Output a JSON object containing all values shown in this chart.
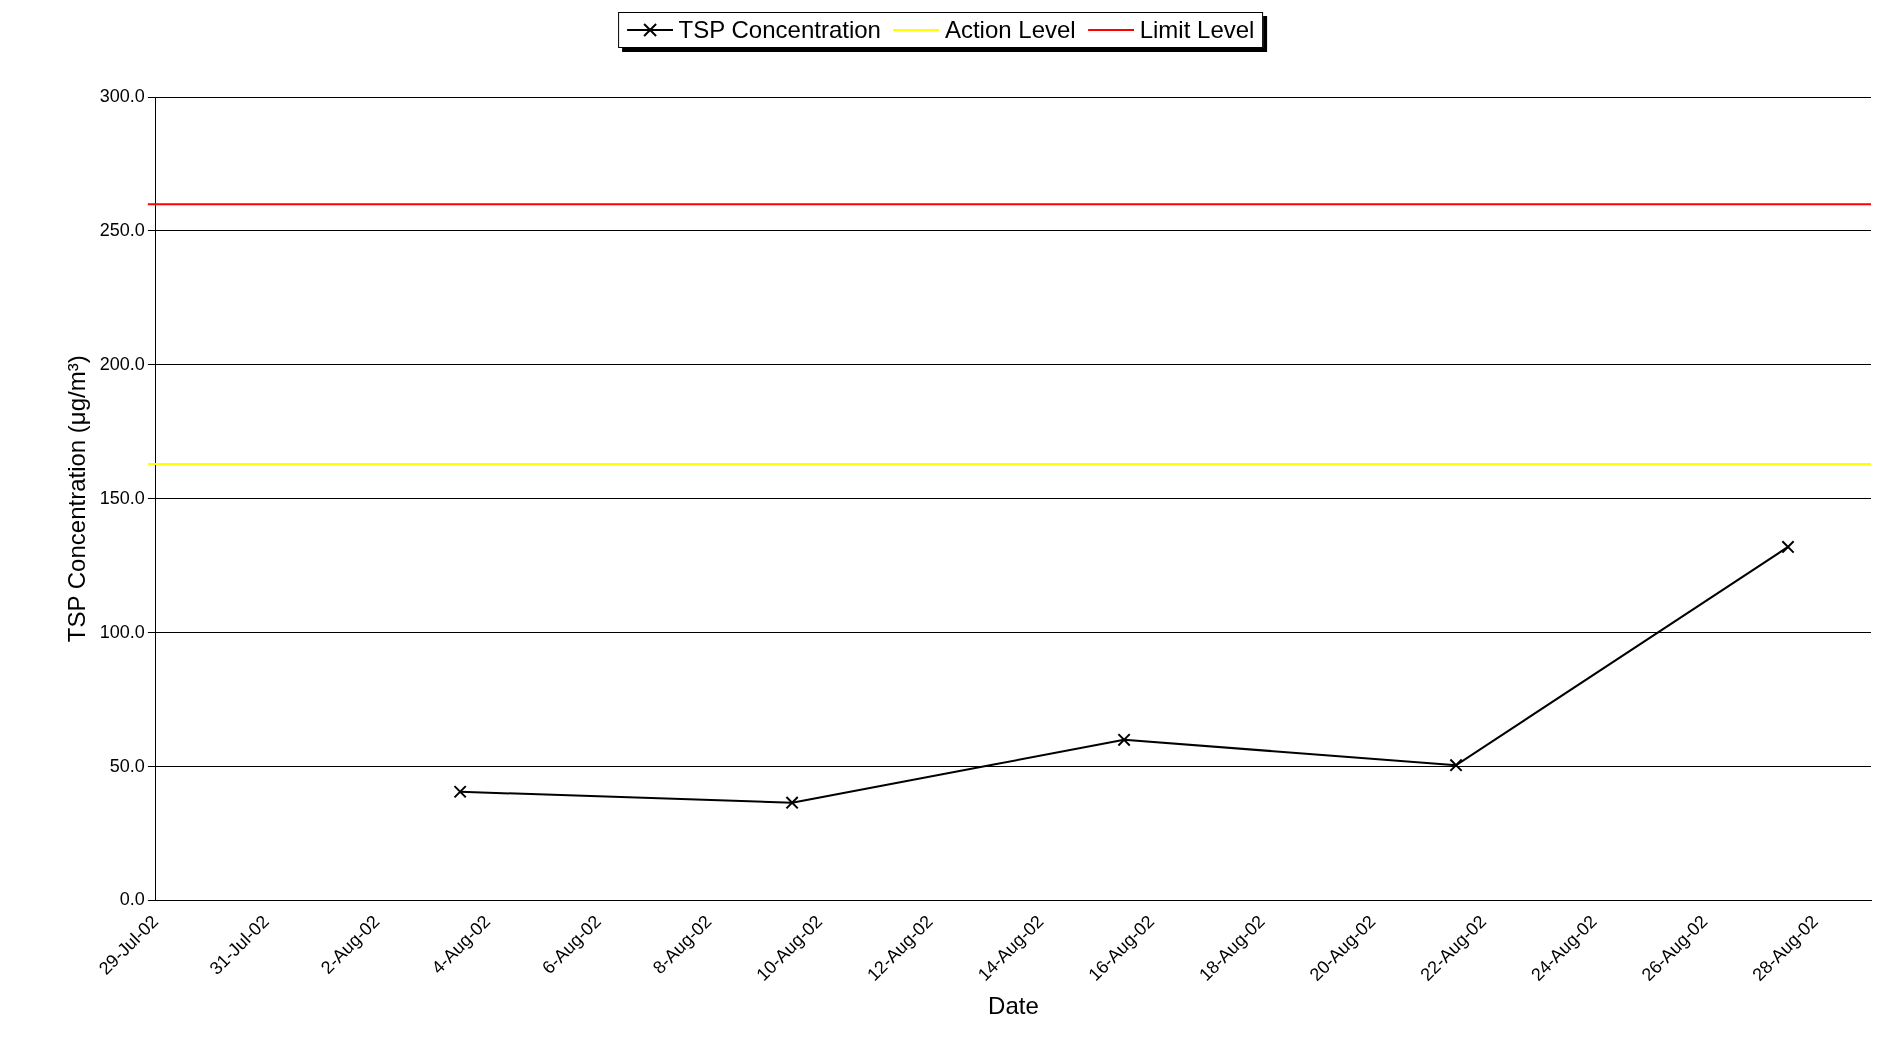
{
  "chart_data": {
    "type": "line",
    "xlabel": "Date",
    "ylabel": "TSP Concentration (μg/m³)",
    "x": [
      "--08-03T12:00",
      "--08-09T12:00",
      "--08-15T12:00",
      "--08-21T12:00",
      "--08-27T12:00"
    ],
    "series": [
      {
        "name": "TSP Concentration",
        "color": "#000000",
        "values": [
          40.6,
          36.5,
          60.0,
          50.5,
          132.0
        ]
      }
    ],
    "xlim": [
      "--07-29",
      "--08-29"
    ],
    "xticks": [
      {
        "value": "--07-29",
        "label": "29-Jul-02"
      },
      {
        "value": "--07-31",
        "label": "31-Jul-02"
      },
      {
        "value": "--08-02",
        "label": "2-Aug-02"
      },
      {
        "value": "--08-04",
        "label": "4-Aug-02"
      },
      {
        "value": "--08-06",
        "label": "6-Aug-02"
      },
      {
        "value": "--08-08",
        "label": "8-Aug-02"
      },
      {
        "value": "--08-10",
        "label": "10-Aug-02"
      },
      {
        "value": "--08-12",
        "label": "12-Aug-02"
      },
      {
        "value": "--08-14",
        "label": "14-Aug-02"
      },
      {
        "value": "--08-16",
        "label": "16-Aug-02"
      },
      {
        "value": "--08-18",
        "label": "18-Aug-02"
      },
      {
        "value": "--08-20",
        "label": "20-Aug-02"
      },
      {
        "value": "--08-22",
        "label": "22-Aug-02"
      },
      {
        "value": "--08-24",
        "label": "24-Aug-02"
      },
      {
        "value": "--08-26",
        "label": "26-Aug-02"
      },
      {
        "value": "--08-28",
        "label": "28-Aug-02"
      }
    ],
    "ylim": [
      0,
      300
    ],
    "yticks": [
      {
        "value": 0,
        "label": "0.0"
      },
      {
        "value": 50,
        "label": "50.0"
      },
      {
        "value": 100,
        "label": "100.0"
      },
      {
        "value": 150,
        "label": "150.0"
      },
      {
        "value": 200,
        "label": "200.0"
      },
      {
        "value": 250,
        "label": "250.0"
      },
      {
        "value": 300,
        "label": "300.0"
      }
    ],
    "ref_lines": [
      {
        "axis": "y",
        "value": 163,
        "label": "Action Level",
        "color": "#ffff00"
      },
      {
        "axis": "y",
        "value": 260,
        "label": "Limit Level",
        "color": "#ff0000"
      }
    ],
    "grid": "y",
    "legend": "top",
    "marker": "cross",
    "line_style": "solid"
  }
}
